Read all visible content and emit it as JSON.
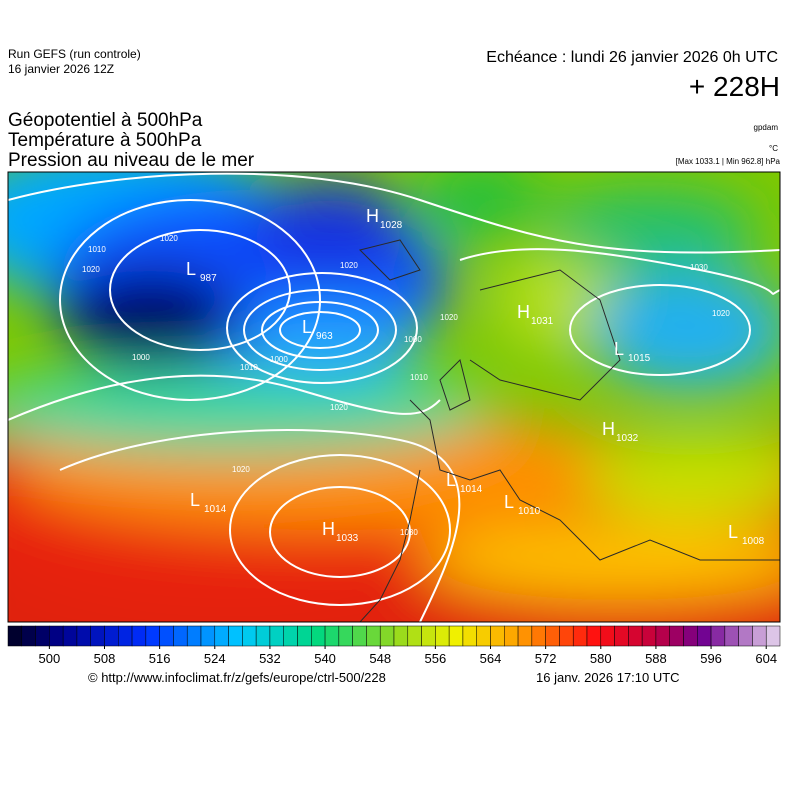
{
  "header": {
    "run": "Run GEFS (run controle)",
    "run_date": "16 janvier 2026 12Z",
    "echeance": "Echéance : lundi 26 janvier 2026 0h UTC",
    "lead": "+ 228H"
  },
  "titles": [
    "Géopotentiel à 500hPa",
    "Température à 500hPa",
    "Pression au niveau de le mer"
  ],
  "units": {
    "geopotential": "gpdam",
    "temperature": "°C",
    "pressure": "[Max 1033.1 | Min 962.8] hPa"
  },
  "map": {
    "centers": [
      {
        "letter": "H",
        "value": 1028
      },
      {
        "letter": "L",
        "value": 987
      },
      {
        "letter": "L",
        "value": 963
      },
      {
        "letter": "H",
        "value": 1033
      },
      {
        "letter": "L",
        "value": 1014
      },
      {
        "letter": "H",
        "value": 1031
      },
      {
        "letter": "L",
        "value": 1015
      },
      {
        "letter": "H",
        "value": 1032
      },
      {
        "letter": "L",
        "value": 1014
      },
      {
        "letter": "L",
        "value": 1010
      },
      {
        "letter": "L",
        "value": 1008
      }
    ],
    "contour_labels": [
      1010,
      1020,
      1000,
      1010,
      1020,
      1000,
      1010,
      1020,
      1030,
      1020,
      1020,
      1030,
      1020,
      1000,
      1020
    ]
  },
  "colorbar": {
    "range": [
      494,
      606
    ],
    "ticks": [
      500,
      508,
      516,
      524,
      532,
      540,
      548,
      556,
      564,
      572,
      580,
      588,
      596,
      604
    ]
  },
  "footer": {
    "source": "© http://www.infoclimat.fr/z/gefs/europe/ctrl-500/228",
    "generated": "16 janv. 2026 17:10 UTC"
  }
}
